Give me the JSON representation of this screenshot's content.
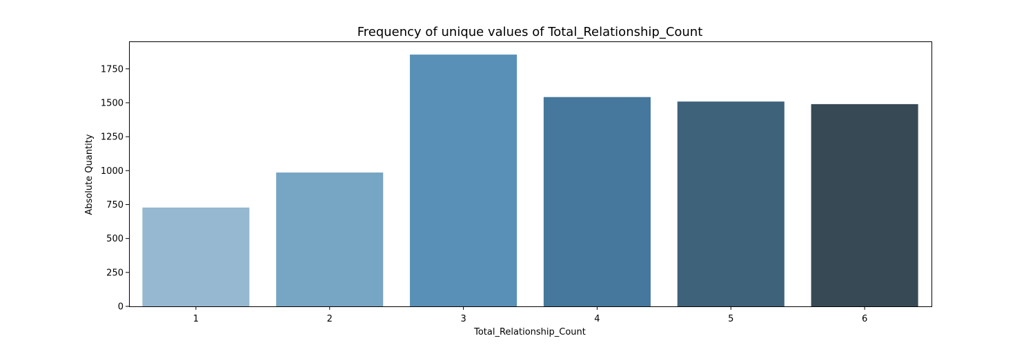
{
  "chart_data": {
    "type": "bar",
    "title": "Frequency of unique values of Total_Relationship_Count",
    "xlabel": "Total_Relationship_Count",
    "ylabel": "Absolute Quantity",
    "categories": [
      "1",
      "2",
      "3",
      "4",
      "5",
      "6"
    ],
    "values": [
      728,
      986,
      1855,
      1542,
      1509,
      1490
    ],
    "colors": [
      "#96b8d1",
      "#77a5c4",
      "#5990b7",
      "#45789c",
      "#3f627b",
      "#384956"
    ],
    "ylim": [
      0,
      1947
    ],
    "yticks": [
      "0",
      "250",
      "500",
      "750",
      "1000",
      "1250",
      "1500",
      "1750"
    ],
    "grid": false,
    "legend": "none"
  }
}
